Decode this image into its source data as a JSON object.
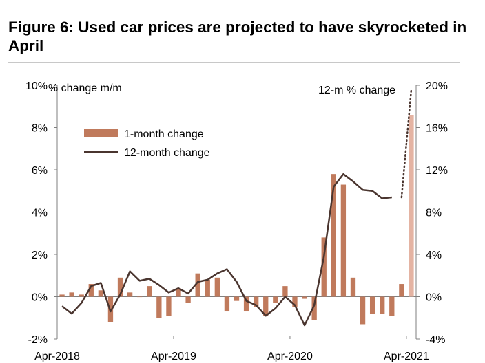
{
  "title": "Figure 6: Used car prices are projected to have skyrocketed in April",
  "chart_data": {
    "type": "bar",
    "left_axis_label": "% change m/m",
    "right_axis_label": "12-m % change",
    "left_ticks": [
      "10%",
      "8%",
      "6%",
      "4%",
      "2%",
      "0%",
      "-2%"
    ],
    "left_tick_values": [
      10,
      8,
      6,
      4,
      2,
      0,
      -2
    ],
    "right_ticks": [
      "20%",
      "16%",
      "12%",
      "8%",
      "4%",
      "0%",
      "-4%"
    ],
    "right_tick_values": [
      20,
      16,
      12,
      8,
      4,
      0,
      -4
    ],
    "ylim_left": [
      -2,
      10
    ],
    "ylim_right": [
      -4,
      20
    ],
    "x_tick_labels": [
      "Apr-2018",
      "Apr-2019",
      "Apr-2020",
      "Apr-2021"
    ],
    "x_tick_months": [
      "2018-04",
      "2019-04",
      "2020-04",
      "2021-04"
    ],
    "months": [
      "2018-04",
      "2018-05",
      "2018-06",
      "2018-07",
      "2018-08",
      "2018-09",
      "2018-10",
      "2018-11",
      "2018-12",
      "2019-01",
      "2019-02",
      "2019-03",
      "2019-04",
      "2019-05",
      "2019-06",
      "2019-07",
      "2019-08",
      "2019-09",
      "2019-10",
      "2019-11",
      "2019-12",
      "2020-01",
      "2020-02",
      "2020-03",
      "2020-04",
      "2020-05",
      "2020-06",
      "2020-07",
      "2020-08",
      "2020-09",
      "2020-10",
      "2020-11",
      "2020-12",
      "2021-01",
      "2021-02",
      "2021-03",
      "2021-04"
    ],
    "legend": {
      "placement": "upper-left"
    },
    "series": [
      {
        "name": "1-month change",
        "kind": "bar",
        "color": "#c07a5c",
        "values": [
          0.1,
          0.2,
          0.1,
          0.6,
          0.3,
          -1.2,
          0.9,
          0.2,
          0.0,
          0.5,
          -1.0,
          -0.9,
          0.4,
          -0.3,
          1.1,
          0.8,
          0.9,
          -0.7,
          -0.2,
          -0.7,
          -0.5,
          -0.9,
          -0.3,
          0.5,
          -0.5,
          -0.1,
          -1.1,
          2.8,
          5.8,
          5.3,
          0.9,
          -1.3,
          -0.8,
          -0.8,
          -0.9,
          0.6,
          8.6
        ]
      },
      {
        "name": "12-month change",
        "kind": "line",
        "color": "#4a352f",
        "values": [
          -0.9,
          -1.6,
          -0.6,
          1.0,
          1.3,
          -1.4,
          0.2,
          2.4,
          1.5,
          1.7,
          1.1,
          0.4,
          0.8,
          0.3,
          1.4,
          1.6,
          2.2,
          2.6,
          1.4,
          -0.4,
          -0.8,
          -1.8,
          -1.1,
          0.0,
          -0.8,
          -2.7,
          -0.8,
          3.8,
          10.4,
          11.6,
          10.9,
          10.1,
          10.0,
          9.3,
          9.4,
          null,
          null
        ],
        "projection": {
          "months": [
            "2021-03",
            "2021-04"
          ],
          "values": [
            9.4,
            19.6
          ],
          "style": "dotted"
        }
      }
    ]
  }
}
